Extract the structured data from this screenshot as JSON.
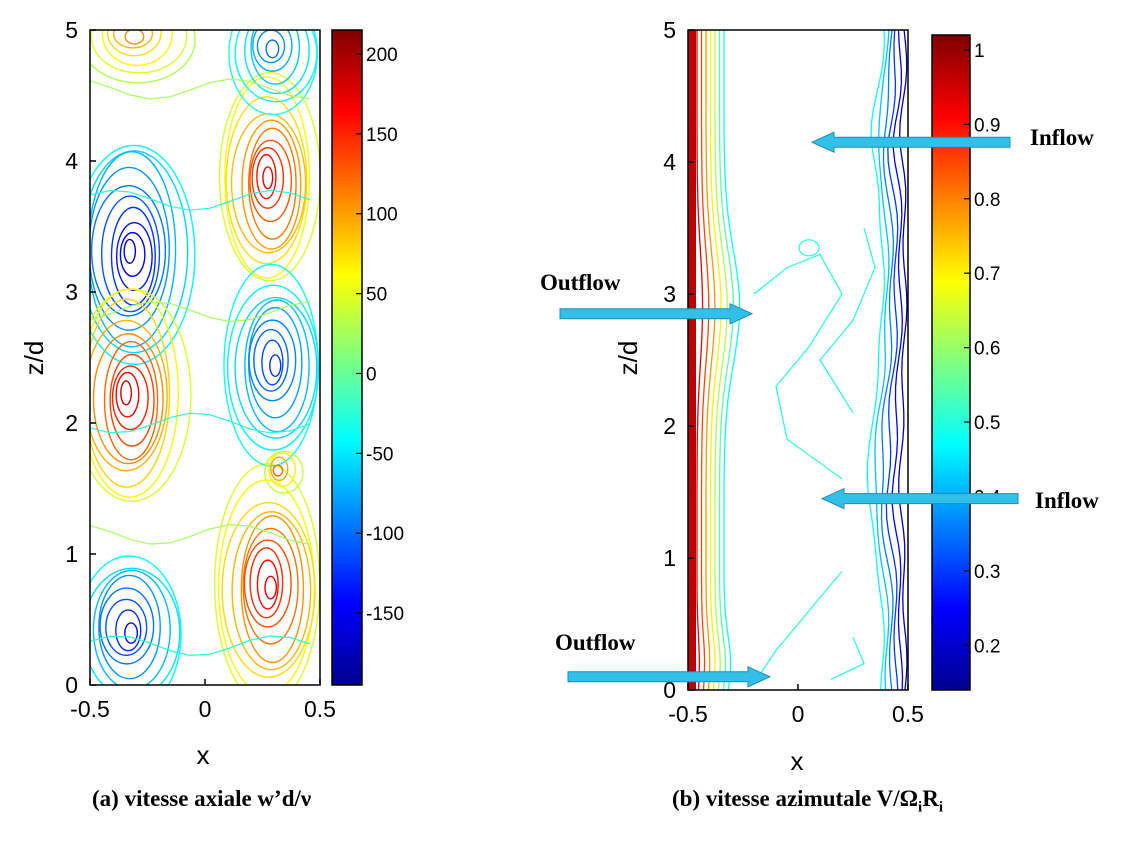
{
  "chart_data": [
    {
      "type": "contour",
      "caption": "(a) vitesse axiale w’d/ν",
      "xlabel": "x",
      "ylabel": "z/d",
      "xlim": [
        -0.5,
        0.5
      ],
      "ylim": [
        0,
        5
      ],
      "x_ticks": [
        "-0.5",
        "0",
        "0.5"
      ],
      "y_ticks": [
        "0",
        "1",
        "2",
        "3",
        "4",
        "5"
      ],
      "colorbar": {
        "range": [
          -195,
          215
        ],
        "ticks": [
          "200",
          "150",
          "100",
          "50",
          "0",
          "-50",
          "-100",
          "-150"
        ]
      },
      "cells": [
        {
          "x": -0.33,
          "z": 0.42,
          "value": -155
        },
        {
          "x": -0.32,
          "z": 3.3,
          "value": -175
        },
        {
          "x": -0.33,
          "z": 2.2,
          "value": 195
        },
        {
          "x": 0.28,
          "z": 3.85,
          "value": 185
        },
        {
          "x": 0.28,
          "z": 0.75,
          "value": 190
        },
        {
          "x": 0.3,
          "z": 2.45,
          "value": -135
        },
        {
          "x": 0.3,
          "z": 4.85,
          "value": -110
        },
        {
          "x": -0.3,
          "z": 4.95,
          "value": 120
        },
        {
          "x": 0.33,
          "z": 1.62,
          "value": 150
        }
      ]
    },
    {
      "type": "contour",
      "caption": "(b) vitesse azimutale V/",
      "caption_omega": "Ω",
      "caption_omega_sub": "i",
      "caption_r": "R",
      "caption_r_sub": "i",
      "xlabel": "x",
      "ylabel": "z/d",
      "xlim": [
        -0.5,
        0.5
      ],
      "ylim": [
        0,
        5
      ],
      "x_ticks": [
        "-0.5",
        "0",
        "0.5"
      ],
      "y_ticks": [
        "0",
        "1",
        "2",
        "3",
        "4",
        "5"
      ],
      "colorbar": {
        "range": [
          0.14,
          1.02
        ],
        "ticks": [
          "1",
          "0.9",
          "0.8",
          "0.7",
          "0.6",
          "0.5",
          "0.4",
          "0.3",
          "0.2"
        ]
      },
      "annotations": [
        {
          "label": "Inflow",
          "z": 4.15
        },
        {
          "label": "Outflow",
          "z": 2.85
        },
        {
          "label": "Inflow",
          "z": 1.45
        },
        {
          "label": "Outflow",
          "z": 0.1
        }
      ]
    }
  ],
  "colors": {
    "arrow": "#33c0e8",
    "arrow_edge": "#1a8fb5"
  }
}
